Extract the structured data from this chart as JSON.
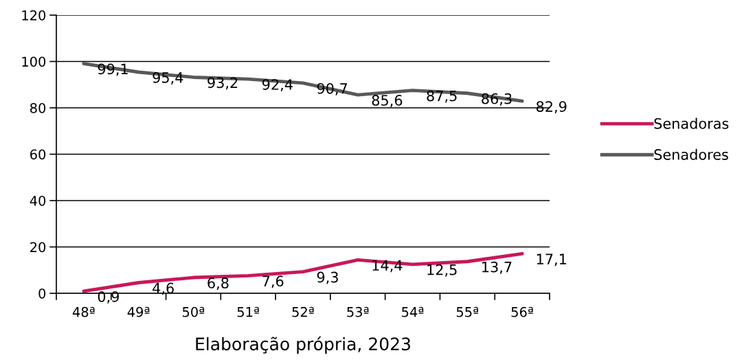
{
  "chart_data": {
    "type": "line",
    "categories": [
      "48ª",
      "49ª",
      "50ª",
      "51ª",
      "52ª",
      "53ª",
      "54ª",
      "55ª",
      "56ª"
    ],
    "series": [
      {
        "name": "Senadoras",
        "color": "#c8185a",
        "values": [
          0.9,
          4.6,
          6.8,
          7.6,
          9.3,
          14.4,
          12.5,
          13.7,
          17.1
        ],
        "value_labels": [
          "0,9",
          "4,6",
          "6,8",
          "7,6",
          "9,3",
          "14,4",
          "12,5",
          "13,7",
          "17,1"
        ]
      },
      {
        "name": "Senadores",
        "color": "#595959",
        "values": [
          99.1,
          95.4,
          93.2,
          92.4,
          90.7,
          85.6,
          87.5,
          86.3,
          82.9
        ],
        "value_labels": [
          "99,1",
          "95,4",
          "93,2",
          "92,4",
          "90,7",
          "85,6",
          "87,5",
          "86,3",
          "82,9"
        ]
      }
    ],
    "ylim": [
      0,
      120
    ],
    "yticks": [
      0,
      20,
      40,
      60,
      80,
      100,
      120
    ],
    "grid": "y",
    "legend": "right",
    "marker": "none",
    "line_style": "solid",
    "annotations": [
      "Elaboração própria, 2023"
    ]
  }
}
